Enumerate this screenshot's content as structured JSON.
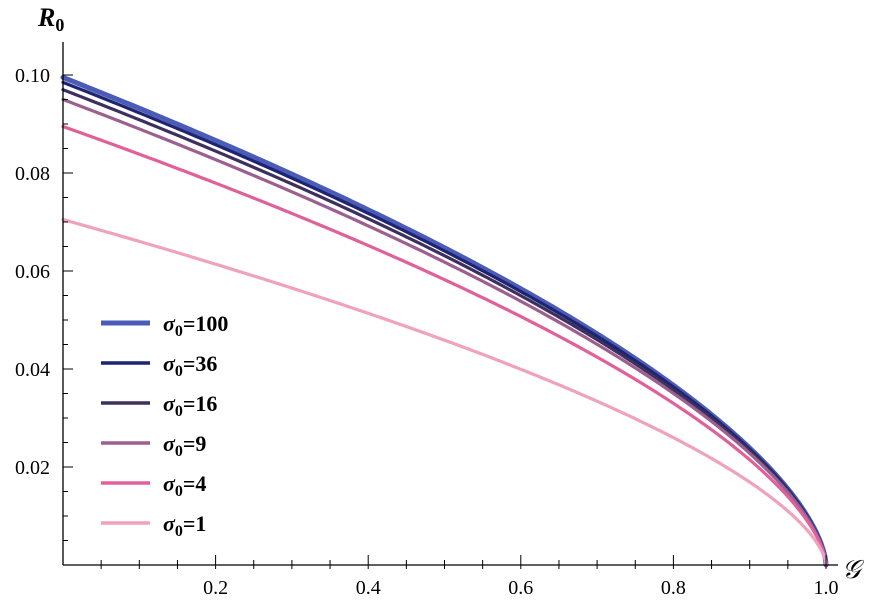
{
  "chart_data": {
    "type": "line",
    "ylabel": "R",
    "ylabel_sub": "0",
    "xlabel": "𝒢",
    "xlim": [
      0,
      1
    ],
    "ylim": [
      0,
      0.1
    ],
    "x_ticks": [
      0.2,
      0.4,
      0.6,
      0.8,
      1.0
    ],
    "x_tick_labels": [
      "0.2",
      "0.4",
      "0.6",
      "0.8",
      "1.0"
    ],
    "y_ticks": [
      0.02,
      0.04,
      0.06,
      0.08,
      0.1
    ],
    "y_tick_labels": [
      "0.02",
      "0.04",
      "0.06",
      "0.08",
      "0.10"
    ],
    "legend_position": "left",
    "grid": false,
    "series": [
      {
        "name": "σ₀=100",
        "legend_sigma": "σ",
        "legend_sub": "0",
        "legend_value": "=100",
        "color": "#4a5bb8",
        "y0": 0.0995
      },
      {
        "name": "σ₀=36",
        "legend_sigma": "σ",
        "legend_sub": "0",
        "legend_value": "=36",
        "color": "#1e2470",
        "y0": 0.0985
      },
      {
        "name": "σ₀=16",
        "legend_sigma": "σ",
        "legend_sub": "0",
        "legend_value": "=16",
        "color": "#3d2f5e",
        "y0": 0.097
      },
      {
        "name": "σ₀=9",
        "legend_sigma": "σ",
        "legend_sub": "0",
        "legend_value": "=9",
        "color": "#9c5f8f",
        "y0": 0.095
      },
      {
        "name": "σ₀=4",
        "legend_sigma": "σ",
        "legend_sub": "0",
        "legend_value": "=4",
        "color": "#e0609a",
        "y0": 0.0895
      },
      {
        "name": "σ₀=1",
        "legend_sigma": "σ",
        "legend_sub": "0",
        "legend_value": "=1",
        "color": "#f0a2bb",
        "y0": 0.0705
      }
    ]
  }
}
